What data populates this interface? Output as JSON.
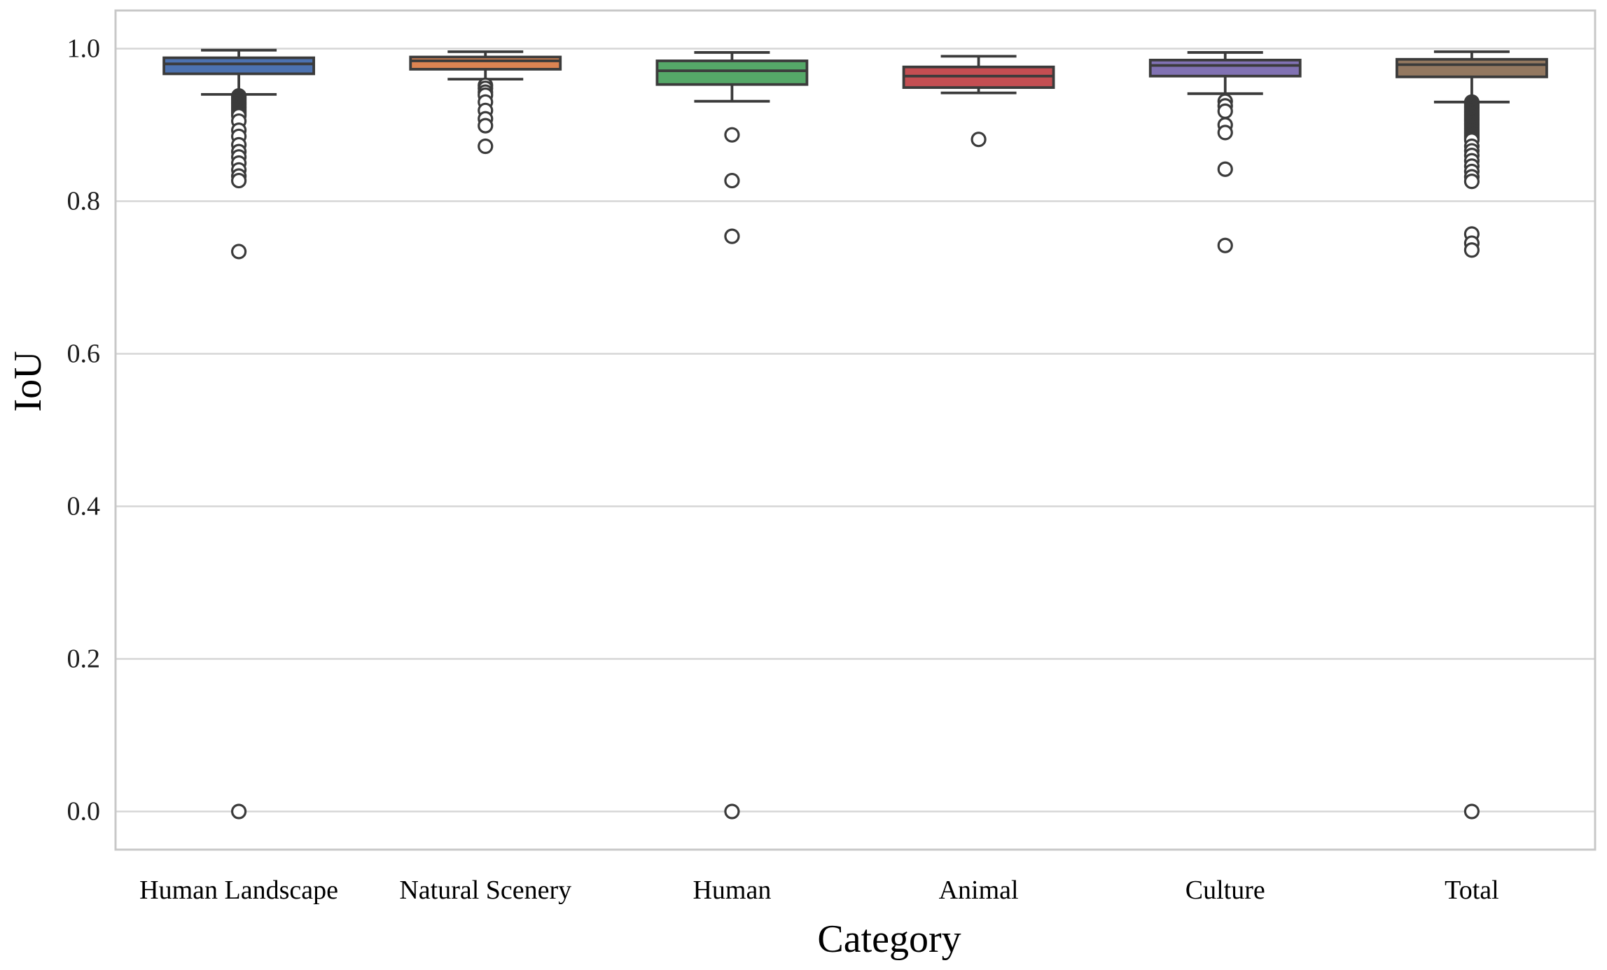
{
  "chart_data": {
    "type": "box",
    "xlabel": "Category",
    "ylabel": "IoU",
    "ylim": [
      -0.05,
      1.05
    ],
    "yticks": [
      0.0,
      0.2,
      0.4,
      0.6,
      0.8,
      1.0
    ],
    "grid": true,
    "legend": "none",
    "categories": [
      "Human Landscape",
      "Natural Scenery",
      "Human",
      "Animal",
      "Culture",
      "Total"
    ],
    "series": [
      {
        "category": "Human Landscape",
        "color": "#4C72B0",
        "whisker_low": 0.94,
        "q1": 0.967,
        "median": 0.98,
        "q3": 0.988,
        "whisker_high": 0.998,
        "outliers": [
          0.938,
          0.936,
          0.934,
          0.932,
          0.93,
          0.928,
          0.926,
          0.924,
          0.922,
          0.92,
          0.918,
          0.916,
          0.914,
          0.912,
          0.905,
          0.893,
          0.885,
          0.874,
          0.865,
          0.858,
          0.85,
          0.841,
          0.833,
          0.827,
          0.734,
          0.0
        ]
      },
      {
        "category": "Natural Scenery",
        "color": "#DD8452",
        "whisker_low": 0.96,
        "q1": 0.973,
        "median": 0.984,
        "q3": 0.989,
        "whisker_high": 0.996,
        "outliers": [
          0.952,
          0.948,
          0.943,
          0.939,
          0.93,
          0.919,
          0.908,
          0.899,
          0.872
        ]
      },
      {
        "category": "Human",
        "color": "#55A868",
        "whisker_low": 0.931,
        "q1": 0.953,
        "median": 0.971,
        "q3": 0.984,
        "whisker_high": 0.995,
        "outliers": [
          0.887,
          0.827,
          0.754,
          0.0
        ]
      },
      {
        "category": "Animal",
        "color": "#C44E52",
        "whisker_low": 0.942,
        "q1": 0.949,
        "median": 0.964,
        "q3": 0.976,
        "whisker_high": 0.99,
        "outliers": [
          0.881
        ]
      },
      {
        "category": "Culture",
        "color": "#8172B3",
        "whisker_low": 0.941,
        "q1": 0.964,
        "median": 0.978,
        "q3": 0.985,
        "whisker_high": 0.995,
        "outliers": [
          0.931,
          0.925,
          0.918,
          0.9,
          0.89,
          0.842,
          0.742
        ]
      },
      {
        "category": "Total",
        "color": "#937860",
        "whisker_low": 0.93,
        "q1": 0.963,
        "median": 0.979,
        "q3": 0.986,
        "whisker_high": 0.996,
        "outliers": [
          0.93,
          0.928,
          0.926,
          0.924,
          0.922,
          0.92,
          0.918,
          0.916,
          0.914,
          0.912,
          0.91,
          0.908,
          0.906,
          0.904,
          0.902,
          0.9,
          0.898,
          0.896,
          0.894,
          0.892,
          0.89,
          0.888,
          0.886,
          0.884,
          0.882,
          0.88,
          0.872,
          0.866,
          0.86,
          0.853,
          0.846,
          0.839,
          0.832,
          0.826,
          0.757,
          0.745,
          0.736,
          0.0
        ]
      }
    ],
    "style": {
      "box_edge_color": "#3b3b3b",
      "grid_color": "#d6d6d6",
      "frame_color": "#c8c8c8",
      "tick_label_color": "#1c1c1c",
      "outlier_fill": "#ffffff",
      "background": "#ffffff"
    }
  }
}
